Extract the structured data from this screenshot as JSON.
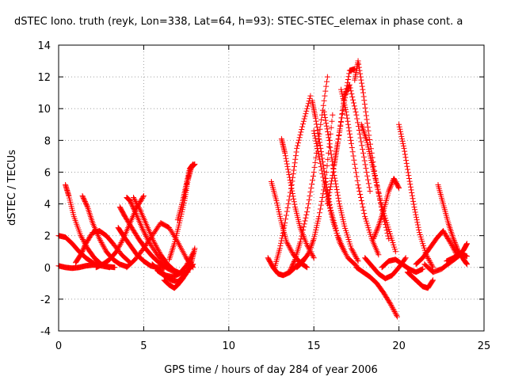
{
  "chart_data": {
    "type": "scatter",
    "title": "dSTEC Iono. truth (reyk, Lon=338, Lat=64, h=93): STEC-STEC_elemax in phase cont. a",
    "xlabel": "GPS time / hours of day 284 of year 2006",
    "ylabel": "dSTEC  / TECUs",
    "xlim": [
      0,
      25
    ],
    "ylim": [
      -4,
      14
    ],
    "xticks": [
      0,
      5,
      10,
      15,
      20,
      25
    ],
    "yticks": [
      -4,
      -2,
      0,
      2,
      4,
      6,
      8,
      10,
      12,
      14
    ],
    "grid": true,
    "marker": "+",
    "series_color": "#ff0000",
    "series": [
      {
        "x": [
          0.0,
          0.4,
          0.8,
          1.2,
          1.6,
          2.0,
          2.4
        ],
        "y": [
          0.1,
          0.0,
          -0.05,
          0.0,
          0.1,
          0.15,
          0.2
        ]
      },
      {
        "x": [
          0.0,
          0.4,
          0.8,
          1.2,
          1.6,
          2.0,
          2.5,
          3.0
        ],
        "y": [
          2.0,
          1.9,
          1.5,
          1.0,
          0.6,
          0.3,
          0.1,
          0.0
        ]
      },
      {
        "x": [
          0.4,
          0.6,
          0.9,
          1.3,
          1.7,
          2.1,
          2.5,
          2.9,
          3.3
        ],
        "y": [
          5.2,
          4.5,
          3.2,
          2.0,
          1.2,
          0.6,
          0.2,
          0.05,
          0.0
        ]
      },
      {
        "x": [
          1.0,
          1.3,
          1.6,
          2.0,
          2.4,
          2.8,
          3.2,
          3.7,
          4.2
        ],
        "y": [
          0.3,
          0.8,
          1.5,
          2.2,
          2.3,
          2.0,
          1.5,
          0.8,
          0.3
        ]
      },
      {
        "x": [
          1.4,
          1.7,
          2.0,
          2.4,
          2.8,
          3.2,
          3.6,
          4.0
        ],
        "y": [
          4.5,
          3.8,
          2.8,
          1.8,
          1.0,
          0.5,
          0.2,
          0.05
        ]
      },
      {
        "x": [
          2.2,
          2.6,
          3.0,
          3.4,
          3.8,
          4.2,
          4.6,
          5.0
        ],
        "y": [
          0.0,
          0.2,
          0.5,
          1.0,
          1.8,
          2.8,
          3.8,
          4.5
        ]
      },
      {
        "x": [
          3.5,
          3.8,
          4.2,
          4.6,
          5.0,
          5.4,
          5.8,
          6.2
        ],
        "y": [
          2.5,
          2.0,
          1.4,
          0.8,
          0.4,
          0.1,
          0.0,
          -0.05
        ]
      },
      {
        "x": [
          3.6,
          3.9,
          4.3,
          4.7,
          5.1,
          5.5,
          5.9,
          6.3,
          6.8
        ],
        "y": [
          3.8,
          3.2,
          2.5,
          1.8,
          1.2,
          0.7,
          0.3,
          0.0,
          -0.3
        ]
      },
      {
        "x": [
          4.0,
          4.2,
          4.5,
          4.9,
          5.3,
          5.8,
          6.3,
          6.8
        ],
        "y": [
          4.4,
          4.2,
          3.5,
          2.5,
          1.6,
          0.8,
          0.2,
          -0.2
        ]
      },
      {
        "x": [
          4.4,
          4.8,
          5.2,
          5.6,
          6.0,
          6.4,
          6.8,
          7.2,
          7.6
        ],
        "y": [
          4.4,
          3.6,
          2.6,
          1.6,
          0.8,
          0.2,
          -0.2,
          -0.4,
          -0.3
        ]
      },
      {
        "x": [
          4.0,
          4.5,
          5.0,
          5.5,
          6.0,
          6.5,
          7.0,
          7.5,
          7.9
        ],
        "y": [
          0.0,
          0.5,
          1.2,
          2.0,
          2.8,
          2.5,
          1.6,
          0.6,
          0.0
        ]
      },
      {
        "x": [
          5.5,
          5.9,
          6.3,
          6.7,
          7.1,
          7.5,
          7.9
        ],
        "y": [
          0.2,
          -0.2,
          -0.5,
          -0.6,
          -0.4,
          0.1,
          0.9
        ]
      },
      {
        "x": [
          5.8,
          6.2,
          6.6,
          7.0,
          7.4,
          7.8,
          8.0
        ],
        "y": [
          -0.2,
          -0.5,
          -0.8,
          -0.9,
          -0.5,
          0.3,
          1.2
        ]
      },
      {
        "x": [
          6.2,
          6.5,
          6.8,
          7.0,
          7.3,
          7.6,
          7.9
        ],
        "y": [
          -0.8,
          -1.1,
          -1.3,
          -1.1,
          -0.7,
          -0.2,
          0.2
        ]
      },
      {
        "x": [
          6.5,
          6.8,
          7.1,
          7.4,
          7.6,
          7.8,
          8.0
        ],
        "y": [
          0.5,
          1.5,
          2.8,
          4.2,
          5.5,
          6.3,
          6.5
        ]
      },
      {
        "x": [
          7.0,
          7.3,
          7.5,
          7.7,
          7.9
        ],
        "y": [
          3.0,
          4.2,
          5.2,
          6.2,
          6.5
        ]
      },
      {
        "x": [
          12.3,
          12.6,
          12.9,
          13.2,
          13.6,
          14.0,
          14.4
        ],
        "y": [
          0.6,
          0.0,
          -0.4,
          -0.5,
          -0.3,
          0.1,
          0.5
        ]
      },
      {
        "x": [
          12.5,
          12.8,
          13.1,
          13.4,
          13.8,
          14.2,
          14.6
        ],
        "y": [
          5.4,
          4.2,
          2.8,
          1.6,
          0.8,
          0.3,
          0.0
        ]
      },
      {
        "x": [
          12.7,
          13.0,
          13.3,
          13.7,
          14.0,
          14.4,
          14.8
        ],
        "y": [
          0.0,
          1.2,
          2.8,
          5.2,
          7.5,
          9.2,
          10.8
        ]
      },
      {
        "x": [
          13.1,
          13.3,
          13.6,
          13.9,
          14.2,
          14.6,
          15.0
        ],
        "y": [
          8.1,
          7.2,
          5.5,
          3.8,
          2.5,
          1.4,
          0.6
        ]
      },
      {
        "x": [
          13.6,
          13.9,
          14.2,
          14.6,
          15.0,
          15.4,
          15.8
        ],
        "y": [
          -0.2,
          0.5,
          1.6,
          3.5,
          6.0,
          9.0,
          12.0
        ]
      },
      {
        "x": [
          14.0,
          14.3,
          14.7,
          15.0,
          15.3,
          15.7,
          16.1
        ],
        "y": [
          0.0,
          0.3,
          0.9,
          1.8,
          3.2,
          5.6,
          9.6
        ]
      },
      {
        "x": [
          14.9,
          15.1,
          15.4,
          15.7,
          16.0,
          16.4,
          16.8
        ],
        "y": [
          10.5,
          9.4,
          7.5,
          5.4,
          3.6,
          2.0,
          1.0
        ]
      },
      {
        "x": [
          15.0,
          15.3,
          15.7,
          16.1,
          16.5,
          17.0,
          17.5
        ],
        "y": [
          8.6,
          7.0,
          4.8,
          3.0,
          1.6,
          0.6,
          0.1
        ]
      },
      {
        "x": [
          15.6,
          15.9,
          16.2,
          16.5,
          16.8,
          17.2,
          17.6
        ],
        "y": [
          9.8,
          8.0,
          5.8,
          4.0,
          2.6,
          1.2,
          0.4
        ]
      },
      {
        "x": [
          15.8,
          16.1,
          16.4,
          16.8,
          17.1,
          17.4
        ],
        "y": [
          4.0,
          5.8,
          7.8,
          10.5,
          12.4,
          12.5
        ]
      },
      {
        "x": [
          16.2,
          16.5,
          16.8,
          17.1,
          17.5,
          17.9,
          18.3
        ],
        "y": [
          6.5,
          8.5,
          10.8,
          11.5,
          9.6,
          7.2,
          4.8
        ]
      },
      {
        "x": [
          16.6,
          16.9,
          17.2,
          17.6,
          18.0,
          18.4,
          18.8
        ],
        "y": [
          11.2,
          9.8,
          7.8,
          5.2,
          3.2,
          1.8,
          0.8
        ]
      },
      {
        "x": [
          17.4,
          17.6,
          17.9,
          18.2,
          18.6,
          19.0,
          19.4
        ],
        "y": [
          11.8,
          13.0,
          11.0,
          8.6,
          5.8,
          3.6,
          1.8
        ]
      },
      {
        "x": [
          17.8,
          18.1,
          18.4,
          18.7,
          19.0,
          19.4,
          19.8
        ],
        "y": [
          9.0,
          8.0,
          6.6,
          5.2,
          3.8,
          2.4,
          1.0
        ]
      },
      {
        "x": [
          17.5,
          17.9,
          18.3,
          18.7,
          19.1,
          19.5,
          19.9
        ],
        "y": [
          0.0,
          -0.3,
          -0.6,
          -1.0,
          -1.6,
          -2.3,
          -3.1
        ]
      },
      {
        "x": [
          18.0,
          18.4,
          18.8,
          19.2,
          19.6,
          20.0,
          20.4
        ],
        "y": [
          0.6,
          0.1,
          -0.4,
          -0.7,
          -0.5,
          0.0,
          0.6
        ]
      },
      {
        "x": [
          18.5,
          18.8,
          19.1,
          19.4,
          19.7,
          20.0
        ],
        "y": [
          1.8,
          2.6,
          3.6,
          4.8,
          5.6,
          5.0
        ]
      },
      {
        "x": [
          19.0,
          19.4,
          19.8,
          20.2,
          20.6,
          21.0,
          21.4
        ],
        "y": [
          0.0,
          0.4,
          0.5,
          0.2,
          -0.1,
          -0.3,
          -0.1
        ]
      },
      {
        "x": [
          20.0,
          20.3,
          20.6,
          20.9,
          21.2,
          21.6,
          22.0
        ],
        "y": [
          9.0,
          7.5,
          5.6,
          3.8,
          2.2,
          0.8,
          0.0
        ]
      },
      {
        "x": [
          20.5,
          20.8,
          21.1,
          21.4,
          21.7,
          22.0
        ],
        "y": [
          -0.3,
          -0.6,
          -0.9,
          -1.2,
          -1.3,
          -0.8
        ]
      },
      {
        "x": [
          21.0,
          21.4,
          21.8,
          22.2,
          22.6,
          23.0,
          23.4
        ],
        "y": [
          0.2,
          0.6,
          1.2,
          1.8,
          2.3,
          1.6,
          0.8
        ]
      },
      {
        "x": [
          22.3,
          22.6,
          22.9,
          23.2,
          23.5,
          23.8,
          24.0
        ],
        "y": [
          5.2,
          4.0,
          2.8,
          1.8,
          1.0,
          0.5,
          0.2
        ]
      },
      {
        "x": [
          21.5,
          22.0,
          22.5,
          23.0,
          23.5,
          23.8,
          24.0
        ],
        "y": [
          0.2,
          -0.3,
          -0.1,
          0.3,
          0.7,
          1.1,
          1.5
        ]
      },
      {
        "x": [
          22.8,
          23.2,
          23.6,
          24.0
        ],
        "y": [
          0.4,
          0.6,
          0.9,
          0.7
        ]
      }
    ]
  }
}
